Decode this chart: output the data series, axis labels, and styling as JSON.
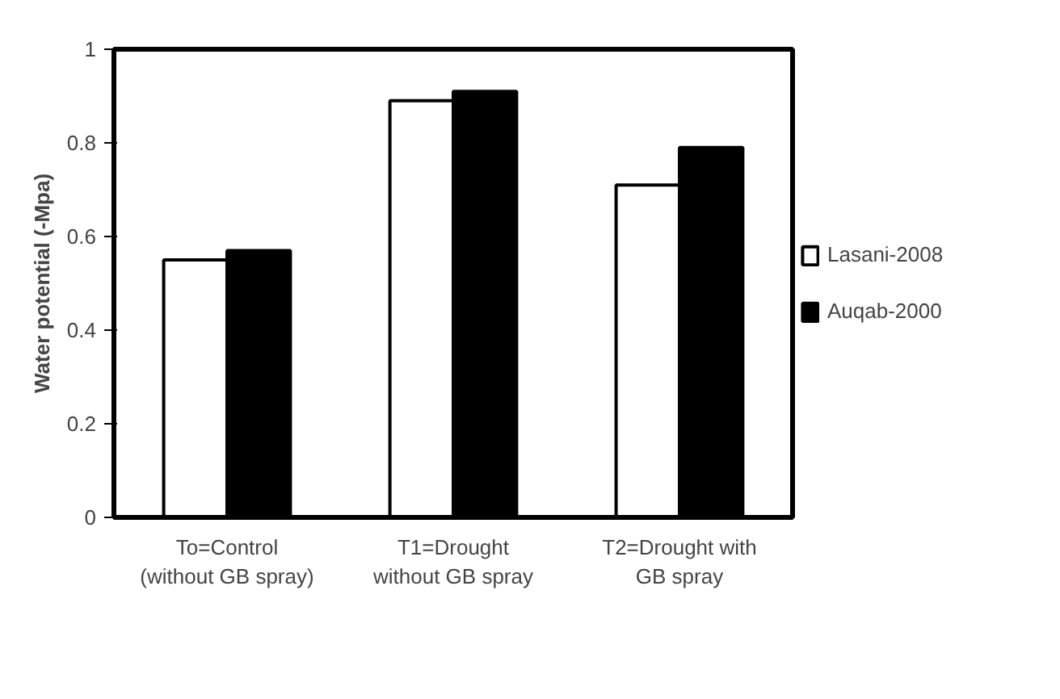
{
  "chart_data": {
    "type": "bar",
    "ylabel": "Water potential (-Mpa)",
    "categories": [
      "To=Control\n(without GB spray)",
      "T1=Drought\nwithout GB spray",
      "T2=Drought with\nGB spray"
    ],
    "series": [
      {
        "name": "Lasani-2008",
        "color": "#ffffff",
        "values": [
          0.55,
          0.89,
          0.71
        ]
      },
      {
        "name": "Auqab-2000",
        "color": "#000000",
        "values": [
          0.57,
          0.91,
          0.79
        ]
      }
    ],
    "ylim": [
      0,
      1
    ],
    "yticks": [
      0,
      0.2,
      0.4,
      0.6,
      0.8,
      1
    ],
    "grid": false,
    "legend": "right"
  }
}
